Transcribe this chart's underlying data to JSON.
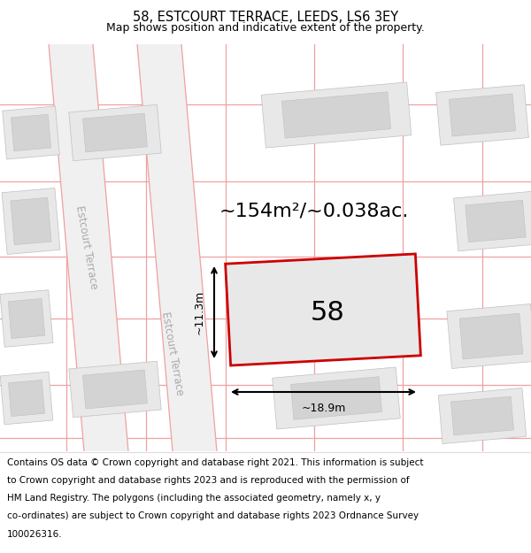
{
  "title": "58, ESTCOURT TERRACE, LEEDS, LS6 3EY",
  "subtitle": "Map shows position and indicative extent of the property.",
  "area_text": "~154m²/~0.038ac.",
  "width_label": "~18.9m",
  "height_label": "~11.3m",
  "number_label": "58",
  "footer_lines": [
    "Contains OS data © Crown copyright and database right 2021. This information is subject",
    "to Crown copyright and database rights 2023 and is reproduced with the permission of",
    "HM Land Registry. The polygons (including the associated geometry, namely x, y",
    "co-ordinates) are subject to Crown copyright and database rights 2023 Ordnance Survey",
    "100026316."
  ],
  "map_bg": "#f7f7f7",
  "plot_fill": "#e8e8e8",
  "building_fill": "#d3d3d3",
  "red_color": "#cc0000",
  "grid_color": "#f0a0a0",
  "road_fill": "#f0f0f0",
  "title_fontsize": 10.5,
  "subtitle_fontsize": 9,
  "footer_fontsize": 7.5,
  "number_fontsize": 22,
  "area_fontsize": 16
}
